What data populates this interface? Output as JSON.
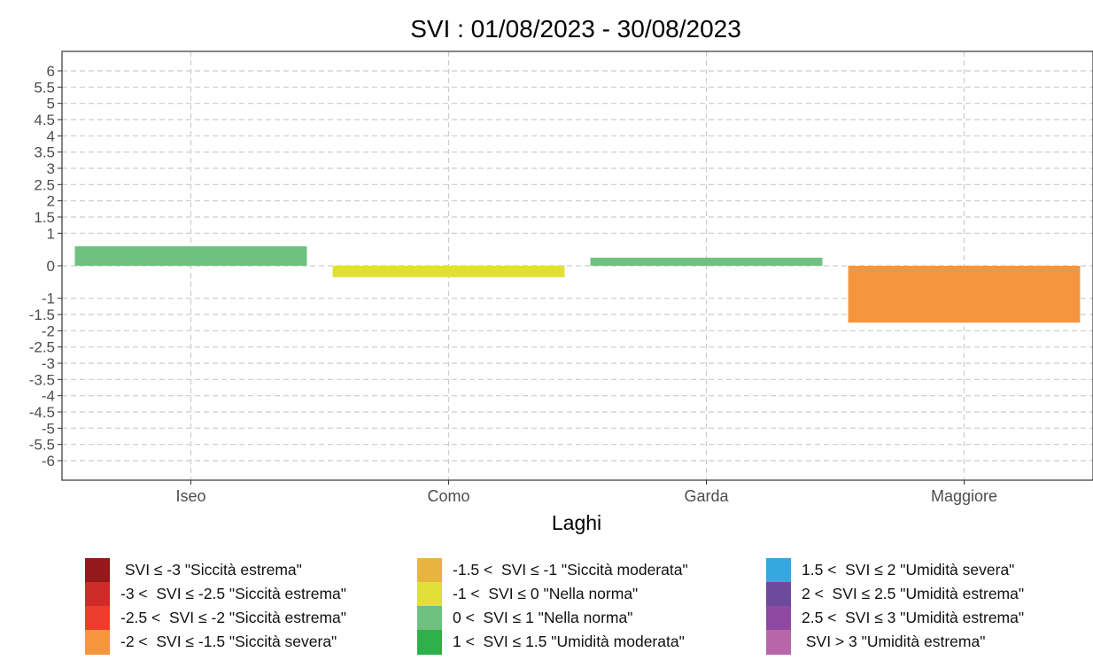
{
  "chart_data": {
    "type": "bar",
    "title": "SVI : 01/08/2023 - 30/08/2023",
    "xlabel": "Laghi",
    "ylabel": "",
    "categories": [
      "Iseo",
      "Como",
      "Garda",
      "Maggiore"
    ],
    "values": [
      0.6,
      -0.35,
      0.25,
      -1.75
    ],
    "bar_colors": [
      "#70c07f",
      "#e0e036",
      "#70c07f",
      "#f5963f"
    ],
    "ylim": [
      -6.6,
      6.6
    ],
    "yticks": [
      6,
      5.5,
      5,
      4.5,
      4,
      3.5,
      3,
      2.5,
      2,
      1.5,
      1,
      0,
      -1,
      -1.5,
      -2,
      -2.5,
      -3,
      -3.5,
      -4,
      -4.5,
      -5,
      -5.5,
      -6
    ],
    "grid": true,
    "legend_position": "bottom",
    "legend": [
      {
        "label": " SVI ≤ -3 \"Siccità estrema\"",
        "color": "#93191b"
      },
      {
        "label": "-3 <  SVI ≤ -2.5 \"Siccità estrema\"",
        "color": "#cf2b29"
      },
      {
        "label": "-2.5 <  SVI ≤ -2 \"Siccità estrema\"",
        "color": "#ee3c2c"
      },
      {
        "label": "-2 <  SVI ≤ -1.5 \"Siccità severa\"",
        "color": "#f5963f"
      },
      {
        "label": "-1.5 <  SVI ≤ -1 \"Siccità moderata\"",
        "color": "#e8b440"
      },
      {
        "label": "-1 <  SVI ≤ 0 \"Nella norma\"",
        "color": "#e0e036"
      },
      {
        "label": "0 <  SVI ≤ 1 \"Nella norma\"",
        "color": "#70c07f"
      },
      {
        "label": "1 <  SVI ≤ 1.5 \"Umidità moderata\"",
        "color": "#2eb04a"
      },
      {
        "label": "1.5 <  SVI ≤ 2 \"Umidità severa\"",
        "color": "#36a7df"
      },
      {
        "label": "2 <  SVI ≤ 2.5 \"Umidità estrema\"",
        "color": "#6e4a9c"
      },
      {
        "label": "2.5 <  SVI ≤ 3 \"Umidità estrema\"",
        "color": "#8e4aa2"
      },
      {
        "label": " SVI > 3 \"Umidità estrema\"",
        "color": "#b866a8"
      }
    ]
  }
}
